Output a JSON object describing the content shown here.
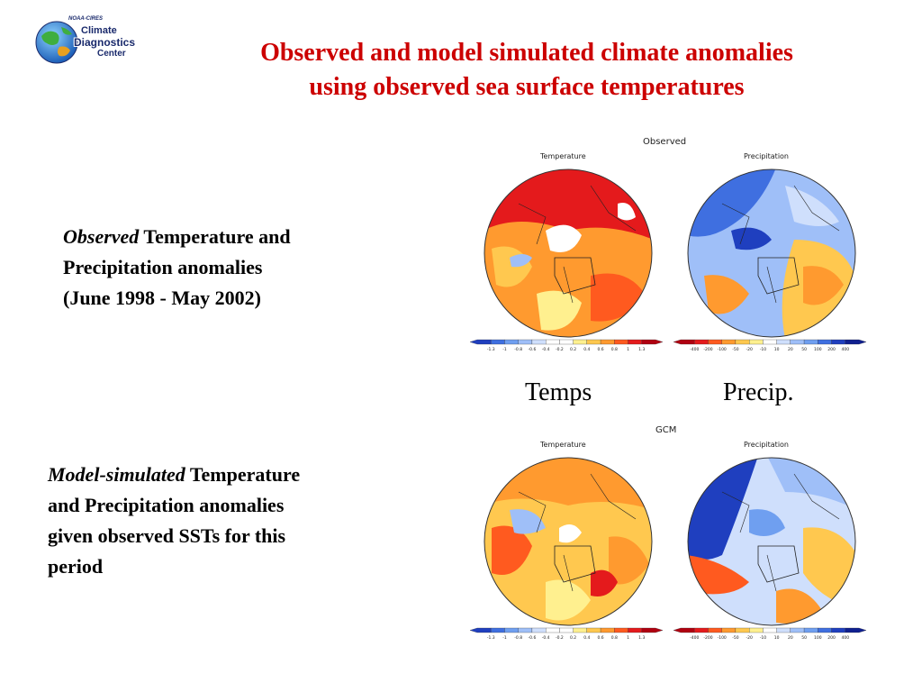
{
  "logo": {
    "org": "NOAA-CIRES",
    "line1": "Climate",
    "line2": "Diagnostics",
    "line3": "Center"
  },
  "title": {
    "line1": "Observed and model simulated climate anomalies",
    "line2": "using observed sea surface temperatures"
  },
  "observed_desc": {
    "emph": "Observed",
    "rest1": " Temperature and",
    "line2": "Precipitation anomalies",
    "line3": "(June 1998 - May 2002)"
  },
  "model_desc": {
    "emph": "Model-simulated",
    "rest1": " Temperature",
    "line2": "and Precipitation anomalies",
    "line3": "given observed SSTs for this",
    "line4": "period"
  },
  "column_labels": {
    "temps": "Temps",
    "precip": "Precip."
  },
  "panels": {
    "observed": {
      "header": "Observed",
      "temp_title": "Temperature",
      "precip_title": "Precipitation"
    },
    "gcm": {
      "header": "GCM",
      "temp_title": "Temperature",
      "precip_title": "Precipitation"
    }
  },
  "colorbars": {
    "temp_ticks": [
      "-1.3",
      "-1",
      "-0.8",
      "-0.6",
      "-0.4",
      "-0.2",
      "0.2",
      "0.4",
      "0.6",
      "0.8",
      "1",
      "1.3"
    ],
    "precip_ticks": [
      "-400",
      "-200",
      "-100",
      "-50",
      "-20",
      "-10",
      "10",
      "20",
      "50",
      "100",
      "200",
      "400"
    ],
    "temp_colors": [
      "#1f3fbf",
      "#3f6fe0",
      "#6f9ff0",
      "#9fbff8",
      "#cfdffc",
      "#ffffff",
      "#ffffff",
      "#fff08f",
      "#ffc84f",
      "#ff9a2f",
      "#ff5a1f",
      "#e41a1c",
      "#b00010"
    ],
    "precip_colors": [
      "#b00010",
      "#e41a1c",
      "#ff5a1f",
      "#ff9a2f",
      "#ffc84f",
      "#fff08f",
      "#ffffff",
      "#cfdffc",
      "#9fbff8",
      "#6f9ff0",
      "#3f6fe0",
      "#1f3fbf",
      "#0f1f8f"
    ]
  }
}
